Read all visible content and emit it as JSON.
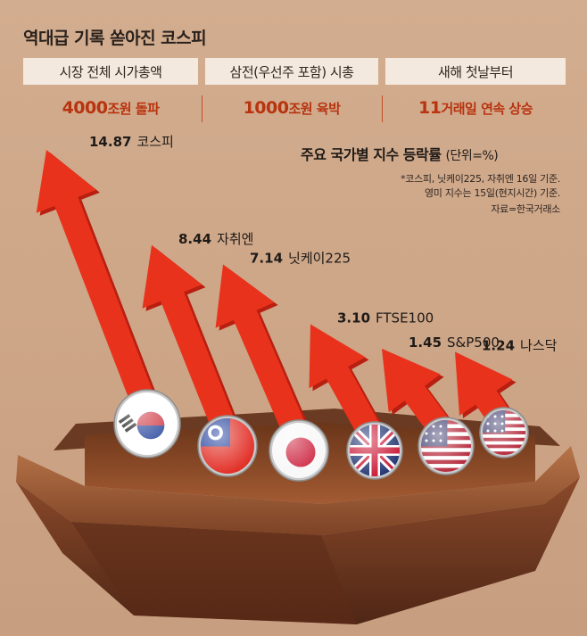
{
  "headline": "역대급 기록 쏟아진 코스피",
  "boxes": [
    {
      "label": "시장 전체 시가총액",
      "stat_num": "4000",
      "stat_rest": "조원 돌파"
    },
    {
      "label": "삼전(우선주 포함) 시총",
      "stat_num": "1000",
      "stat_rest": "조원 육박"
    },
    {
      "label": "새해 첫날부터",
      "stat_num": "11",
      "stat_rest": "거래일 연속 상승"
    }
  ],
  "subchart": {
    "title": "주요 국가별 지수 등락률",
    "unit": "(단위=%)",
    "notes": [
      "*코스피, 닛케이225, 자취엔 16일 기준.",
      "영미 지수는 15일(현지시간) 기준.",
      "자료=한국거래소"
    ]
  },
  "chart_data": {
    "type": "bar",
    "title": "주요 국가별 지수 등락률",
    "unit": "%",
    "categories": [
      "코스피",
      "자취엔",
      "닛케이225",
      "FTSE100",
      "S&P500",
      "나스닥"
    ],
    "values": [
      14.87,
      8.44,
      7.14,
      3.1,
      1.45,
      1.24
    ],
    "value_labels": [
      "14.87",
      "8.44",
      "7.14",
      "3.10",
      "1.45",
      "1.24"
    ],
    "flags": [
      "south-korea-flag-icon",
      "taiwan-flag-icon",
      "japan-flag-icon",
      "uk-flag-icon",
      "us-flag-icon",
      "us-flag-icon"
    ]
  },
  "colors": {
    "arrow": "#e8321c",
    "arrow_dark": "#b81f10",
    "accent_text": "#b8330f",
    "background": "#cfa88a"
  }
}
